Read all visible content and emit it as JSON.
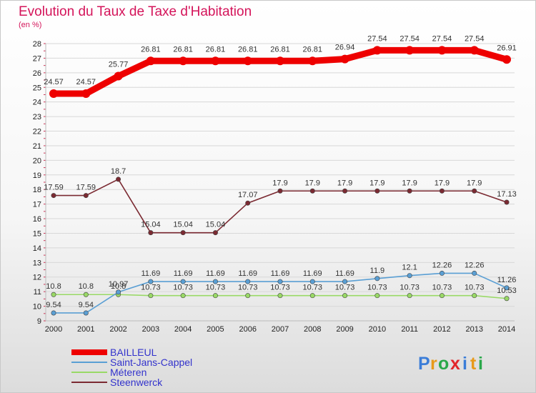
{
  "header": {
    "title": "Evolution du Taux de Taxe d'Habitation",
    "subtitle": "(en %)"
  },
  "chart_data": {
    "type": "line",
    "title": "Evolution du Taux de Taxe d'Habitation",
    "ylabel": "(en %)",
    "xlabel": "",
    "x": [
      "2000",
      "2001",
      "2002",
      "2003",
      "2004",
      "2005",
      "2006",
      "2007",
      "2008",
      "2009",
      "2010",
      "2011",
      "2012",
      "2013",
      "2014"
    ],
    "ylim": [
      9,
      28
    ],
    "yticks": [
      "9",
      "10",
      "11",
      "12",
      "13",
      "14",
      "15",
      "16",
      "17",
      "18",
      "19",
      "20",
      "21",
      "22",
      "23",
      "24",
      "25",
      "26",
      "27",
      "28"
    ],
    "grid": "horizontal",
    "legend_position": "bottom-left",
    "series": [
      {
        "name": "BAILLEUL",
        "color": "#ee0000",
        "values": [
          24.57,
          24.57,
          25.77,
          26.81,
          26.81,
          26.81,
          26.81,
          26.81,
          26.81,
          26.94,
          27.54,
          27.54,
          27.54,
          27.54,
          26.91
        ],
        "labels": [
          "24.57",
          "24.57",
          "25.77",
          "26.81",
          "26.81",
          "26.81",
          "26.81",
          "26.81",
          "26.81",
          "26.94",
          "27.54",
          "27.54",
          "27.54",
          "27.54",
          "26.91"
        ]
      },
      {
        "name": "Saint-Jans-Cappel",
        "color": "#5a9fd4",
        "values": [
          9.54,
          9.54,
          10.97,
          11.69,
          11.69,
          11.69,
          11.69,
          11.69,
          11.69,
          11.69,
          11.9,
          12.1,
          12.26,
          12.26,
          11.26
        ],
        "labels": [
          "9.54",
          "9.54",
          "10.97",
          "11.69",
          "11.69",
          "11.69",
          "11.69",
          "11.69",
          "11.69",
          "11.69",
          "11.9",
          "12.1",
          "12.26",
          "12.26",
          "11.26"
        ]
      },
      {
        "name": "Méteren",
        "color": "#99d966",
        "values": [
          10.8,
          10.8,
          10.8,
          10.73,
          10.73,
          10.73,
          10.73,
          10.73,
          10.73,
          10.73,
          10.73,
          10.73,
          10.73,
          10.73,
          10.53
        ],
        "labels": [
          "10.8",
          "10.8",
          "10.8",
          "10.73",
          "10.73",
          "10.73",
          "10.73",
          "10.73",
          "10.73",
          "10.73",
          "10.73",
          "10.73",
          "10.73",
          "10.73",
          "10.53"
        ]
      },
      {
        "name": "Steenwerck",
        "color": "#7b2a32",
        "values": [
          17.59,
          17.59,
          18.7,
          15.04,
          15.04,
          15.04,
          17.07,
          17.9,
          17.9,
          17.9,
          17.9,
          17.9,
          17.9,
          17.9,
          17.13
        ],
        "labels": [
          "17.59",
          "17.59",
          "18.7",
          "15.04",
          "15.04",
          "15.04",
          "17.07",
          "17.9",
          "17.9",
          "17.9",
          "17.9",
          "17.9",
          "17.9",
          "17.9",
          "17.13"
        ]
      }
    ]
  },
  "brand": {
    "letters": [
      "P",
      "r",
      "o",
      "x",
      "i",
      "t",
      "i"
    ],
    "colors": [
      "#3b7dd8",
      "#e89a1a",
      "#2aa84a",
      "#e2262a",
      "#3b7dd8",
      "#e89a1a",
      "#2aa84a"
    ]
  }
}
